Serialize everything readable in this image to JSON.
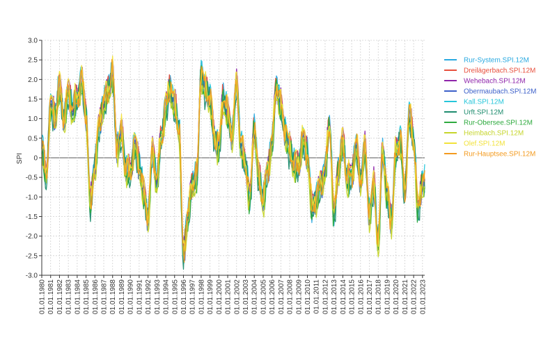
{
  "chart_data": {
    "type": "line",
    "title": "",
    "xlabel": "",
    "ylabel": "SPI",
    "ylim": [
      -3.0,
      3.0
    ],
    "xlim": [
      1980,
      2023.25
    ],
    "yticks": [
      3.0,
      2.5,
      2.0,
      1.5,
      1.0,
      0.5,
      0.0,
      -0.5,
      -1.0,
      -1.5,
      -2.0,
      -2.5,
      -3.0
    ],
    "ytick_labels": [
      "3.0",
      "2.5",
      "2.0",
      "1.5",
      "1.0",
      "0.5",
      "0",
      "-0.5",
      "-1.0",
      "-1.5",
      "-2.0",
      "-2.5",
      "-3.0"
    ],
    "xtick_labels": [
      "01.01.1980",
      "01.01.1981",
      "01.01.1982",
      "01.01.1983",
      "01.01.1984",
      "01.01.1985",
      "01.01.1986",
      "01.01.1987",
      "01.01.1988",
      "01.01.1989",
      "01.01.1990",
      "01.01.1991",
      "01.01.1992",
      "01.01.1993",
      "01.01.1994",
      "01.01.1995",
      "01.01.1996",
      "01.01.1997",
      "01.01.1998",
      "01.01.1999",
      "01.01.2000",
      "01.01.2001",
      "01.01.2002",
      "01.01.2003",
      "01.01.2004",
      "01.01.2005",
      "01.01.2006",
      "01.01.2007",
      "01.01.2008",
      "01.01.2009",
      "01.01.2010",
      "01.01.2011",
      "01.01.2012",
      "01.01.2013",
      "01.01.2014",
      "01.01.2015",
      "01.01.2016",
      "01.01.2017",
      "01.01.2018",
      "01.01.2019",
      "01.01.2020",
      "01.01.2021",
      "01.01.2022",
      "01.01.2023"
    ],
    "grid": true,
    "legend_position": "right",
    "base": {
      "x": [
        1980.0,
        1980.5,
        1981.0,
        1981.5,
        1982.0,
        1982.5,
        1983.0,
        1983.5,
        1984.0,
        1984.5,
        1985.0,
        1985.5,
        1986.0,
        1986.5,
        1987.0,
        1987.5,
        1988.0,
        1988.5,
        1989.0,
        1989.5,
        1990.0,
        1990.5,
        1991.0,
        1991.5,
        1992.0,
        1992.5,
        1993.0,
        1993.5,
        1994.0,
        1994.5,
        1995.0,
        1995.5,
        1996.0,
        1996.5,
        1997.0,
        1997.5,
        1998.0,
        1998.5,
        1999.0,
        1999.5,
        2000.0,
        2000.5,
        2001.0,
        2001.5,
        2002.0,
        2002.5,
        2003.0,
        2003.5,
        2004.0,
        2004.5,
        2005.0,
        2005.5,
        2006.0,
        2006.5,
        2007.0,
        2007.5,
        2008.0,
        2008.5,
        2009.0,
        2009.5,
        2010.0,
        2010.5,
        2011.0,
        2011.5,
        2012.0,
        2012.5,
        2013.0,
        2013.5,
        2014.0,
        2014.5,
        2015.0,
        2015.5,
        2016.0,
        2016.5,
        2017.0,
        2017.5,
        2018.0,
        2018.5,
        2019.0,
        2019.5,
        2020.0,
        2020.5,
        2021.0,
        2021.5,
        2022.0,
        2022.5,
        2023.0
      ],
      "y": [
        0.3,
        -0.5,
        1.4,
        1.0,
        1.8,
        1.0,
        1.7,
        1.2,
        1.5,
        2.0,
        1.1,
        -1.2,
        -0.2,
        0.9,
        1.4,
        1.7,
        2.1,
        0.3,
        0.6,
        -0.3,
        -0.4,
        0.4,
        -0.2,
        -0.9,
        -1.5,
        0.2,
        -0.6,
        0.5,
        1.3,
        1.8,
        1.3,
        0.7,
        -2.4,
        -1.5,
        -0.7,
        -0.5,
        2.2,
        1.7,
        1.5,
        0.5,
        0.3,
        1.5,
        1.1,
        0.6,
        1.9,
        0.3,
        -0.2,
        -1.0,
        0.8,
        -0.5,
        -1.1,
        -0.3,
        0.4,
        1.8,
        1.3,
        0.7,
        0.2,
        -0.2,
        -0.2,
        0.5,
        0.1,
        -1.3,
        -1.0,
        -0.7,
        -0.3,
        0.8,
        -1.4,
        -0.3,
        0.4,
        -0.6,
        -0.4,
        0.3,
        -0.6,
        0.2,
        -1.4,
        -0.7,
        -2.2,
        0.2,
        -0.9,
        -1.6,
        0.1,
        0.5,
        -0.9,
        1.1,
        0.4,
        -1.3,
        -0.6
      ]
    },
    "series": [
      {
        "name": "Rur-System.SPI.12M",
        "color": "#29a9e0",
        "offset": 0.0,
        "phase": 0.0
      },
      {
        "name": "Dreilägerbach.SPI.12M",
        "color": "#e84f3d",
        "offset": 0.05,
        "phase": 1.1
      },
      {
        "name": "Wehebach.SPI.12M",
        "color": "#8e24aa",
        "offset": 0.1,
        "phase": 2.3
      },
      {
        "name": "Obermaubach.SPI.12M",
        "color": "#3b5fc9",
        "offset": -0.05,
        "phase": 3.1
      },
      {
        "name": "Kall.SPI.12M",
        "color": "#26c6da",
        "offset": 0.08,
        "phase": 4.2
      },
      {
        "name": "Urft.SPI.12M",
        "color": "#1e8c6e",
        "offset": -0.1,
        "phase": 5.4
      },
      {
        "name": "Rur-Obersee.SPI.12M",
        "color": "#2eaa3e",
        "offset": -0.08,
        "phase": 0.7
      },
      {
        "name": "Heimbach.SPI.12M",
        "color": "#c6d52b",
        "offset": -0.15,
        "phase": 1.9
      },
      {
        "name": "Olef.SPI.12M",
        "color": "#f2e23a",
        "offset": 0.12,
        "phase": 2.8
      },
      {
        "name": "Rur-Hauptsee.SPI.12M",
        "color": "#f39a1e",
        "offset": 0.02,
        "phase": 3.7
      }
    ]
  }
}
